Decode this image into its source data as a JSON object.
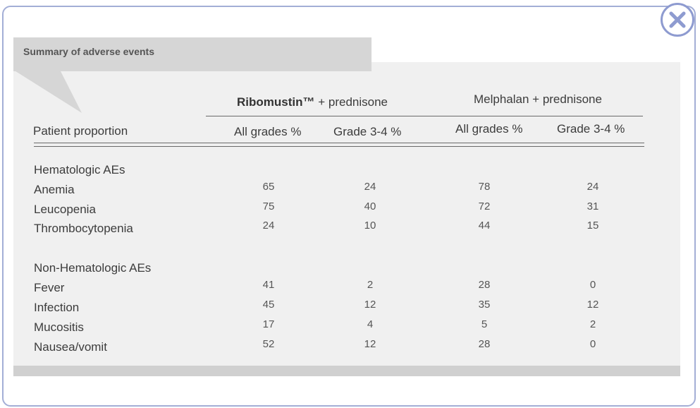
{
  "title": "Summary of adverse events",
  "close_icon": "close-icon",
  "colors": {
    "frame": "#a3aed6",
    "close": "#8e9bd0",
    "panel": "#f0f0f0",
    "tab": "#d6d6d6"
  },
  "groups": [
    {
      "brand": "Ribomustin™",
      "rest": " + prednisone"
    },
    {
      "brand": "",
      "rest": "Melphalan + prednisone"
    }
  ],
  "row_header": "Patient proportion",
  "subheaders": [
    "All grades %",
    "Grade 3-4 %",
    "All grades %",
    "Grade 3-4 %"
  ],
  "sections": [
    {
      "label": "Hematologic AEs",
      "rows": [
        {
          "name": "Anemia",
          "values": [
            "65",
            "24",
            "78",
            "24"
          ]
        },
        {
          "name": "Leucopenia",
          "values": [
            "75",
            "40",
            "72",
            "31"
          ]
        },
        {
          "name": "Thrombocytopenia",
          "values": [
            "24",
            "10",
            "44",
            "15"
          ]
        }
      ]
    },
    {
      "label": "Non-Hematologic AEs",
      "rows": [
        {
          "name": "Fever",
          "values": [
            "41",
            "2",
            "28",
            "0"
          ]
        },
        {
          "name": "Infection",
          "values": [
            "45",
            "12",
            "35",
            "12"
          ]
        },
        {
          "name": "Mucositis",
          "values": [
            "17",
            "4",
            "5",
            "2"
          ]
        },
        {
          "name": "Nausea/vomit",
          "values": [
            "52",
            "12",
            "28",
            "0"
          ]
        }
      ]
    }
  ]
}
